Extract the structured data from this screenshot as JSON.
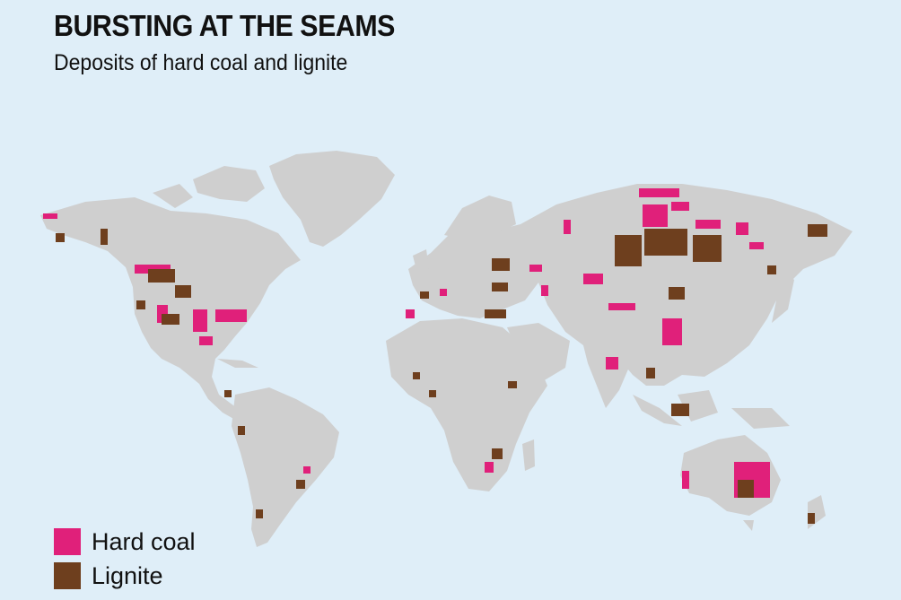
{
  "header": {
    "title": "BURSTING AT THE SEAMS",
    "subtitle": "Deposits of hard coal and lignite"
  },
  "legend": [
    {
      "label": "Hard coal",
      "color": "#e0207a"
    },
    {
      "label": "Lignite",
      "color": "#6e3f1e"
    }
  ],
  "colors": {
    "background": "#dfeef8",
    "land": "#cfcfcf"
  }
}
